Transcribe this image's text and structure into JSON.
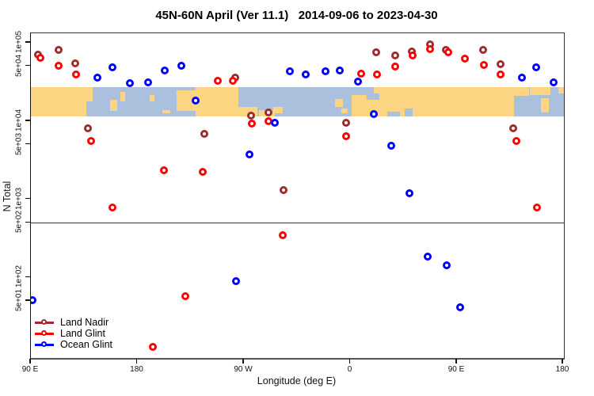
{
  "title": "45N-60N April (Ver 11.1)   2014-09-06 to 2023-04-30",
  "axes": {
    "x": {
      "label": "Longitude (deg E)",
      "ticks": [
        {
          "value": 90,
          "label": "90 E"
        },
        {
          "value": 180,
          "label": "180"
        },
        {
          "value": 270,
          "label": "90 W"
        },
        {
          "value": 360,
          "label": "0"
        },
        {
          "value": 450,
          "label": "90 E"
        },
        {
          "value": 540,
          "label": "180"
        }
      ]
    },
    "y": {
      "label": "N Total",
      "ticks": [
        {
          "value": 100000,
          "label": "1e+05"
        },
        {
          "value": 50000,
          "label": "5e+04"
        },
        {
          "value": 10000,
          "label": "1e+04"
        },
        {
          "value": 5000,
          "label": "5e+03"
        },
        {
          "value": 1000,
          "label": "1e+03"
        },
        {
          "value": 500,
          "label": "5e+02"
        },
        {
          "value": 100,
          "label": "1e+02"
        },
        {
          "value": 50,
          "label": "5e+01"
        }
      ]
    }
  },
  "reference_line": {
    "value": 500
  },
  "map_band": {
    "top_value": 27300,
    "bottom_value": 11500,
    "ocean_color": "#AAC0DD",
    "land_color": "#FBD581",
    "land_patches": [
      [
        0,
        0,
        70,
        37
      ],
      [
        70,
        0,
        8,
        18
      ],
      [
        100,
        16,
        9,
        14
      ],
      [
        113,
        6,
        6,
        12
      ],
      [
        150,
        10,
        6,
        8
      ],
      [
        166,
        29,
        10,
        4
      ],
      [
        184,
        4,
        28,
        26
      ],
      [
        208,
        0,
        54,
        37
      ],
      [
        262,
        25,
        24,
        12
      ],
      [
        288,
        29,
        20,
        8
      ],
      [
        306,
        25,
        12,
        8
      ],
      [
        384,
        15,
        10,
        10
      ],
      [
        392,
        27,
        8,
        6
      ],
      [
        405,
        0,
        224,
        37
      ],
      [
        630,
        0,
        26,
        10
      ],
      [
        644,
        14,
        10,
        18
      ],
      [
        666,
        0,
        8,
        8
      ]
    ],
    "ocean_patches": [
      [
        405,
        0,
        28,
        10
      ],
      [
        424,
        8,
        16,
        8
      ],
      [
        450,
        31,
        16,
        6
      ],
      [
        472,
        27,
        10,
        10
      ],
      [
        610,
        11,
        19,
        26
      ]
    ]
  },
  "legend": [
    {
      "name": "Land Nadir",
      "color": "#9E2C2C"
    },
    {
      "name": "Land Glint",
      "color": "#FF0000"
    },
    {
      "name": "Ocean Glint",
      "color": "#0000FF"
    }
  ],
  "chart_data": {
    "type": "scatter",
    "xlabel": "Longitude (deg E)",
    "ylabel": "N Total",
    "xlim": [
      90,
      540.3
    ],
    "ylim": [
      9.4,
      132000
    ],
    "ylog": true,
    "series": [
      {
        "name": "Land Nadir",
        "color": "#9E2C2C",
        "points": [
          [
            96,
            70000
          ],
          [
            113.4,
            81000
          ],
          [
            127.4,
            55000
          ],
          [
            262.9,
            36000
          ],
          [
            381.7,
            76000
          ],
          [
            397.8,
            69000
          ],
          [
            411.8,
            77000
          ],
          [
            427.1,
            95000
          ],
          [
            440.5,
            81000
          ],
          [
            471.9,
            81000
          ],
          [
            486.6,
            53000
          ],
          [
            138.1,
            8000
          ],
          [
            236.2,
            6800
          ],
          [
            276.3,
            11700
          ],
          [
            291.0,
            12800
          ],
          [
            356.4,
            9500
          ],
          [
            303.7,
            1300
          ],
          [
            497.3,
            8000
          ]
        ]
      },
      {
        "name": "Land Glint",
        "color": "#FF0000",
        "points": [
          [
            98,
            64000
          ],
          [
            113.4,
            51000
          ],
          [
            128.1,
            39000
          ],
          [
            248.2,
            33000
          ],
          [
            260.9,
            33000
          ],
          [
            369.1,
            40000
          ],
          [
            382.4,
            39000
          ],
          [
            397.8,
            50000
          ],
          [
            412.5,
            69000
          ],
          [
            427.1,
            83000
          ],
          [
            442.5,
            76000
          ],
          [
            456.5,
            63000
          ],
          [
            472.5,
            52000
          ],
          [
            486.6,
            39000
          ],
          [
            140.7,
            5600
          ],
          [
            202.2,
            2350
          ],
          [
            235.5,
            2250
          ],
          [
            158.8,
            790
          ],
          [
            276.9,
            9300
          ],
          [
            291.0,
            9900
          ],
          [
            356.4,
            6400
          ],
          [
            500.0,
            5600
          ],
          [
            517.3,
            790
          ],
          [
            303.0,
            350
          ],
          [
            220.2,
            58
          ],
          [
            192.8,
            13
          ]
        ]
      },
      {
        "name": "Ocean Glint",
        "color": "#0000FF",
        "points": [
          [
            146.1,
            36000
          ],
          [
            158.8,
            49000
          ],
          [
            173.5,
            30500
          ],
          [
            188.8,
            31000
          ],
          [
            202.8,
            44000
          ],
          [
            216.8,
            51000
          ],
          [
            228.9,
            18300
          ],
          [
            309.0,
            43000
          ],
          [
            322.3,
            39000
          ],
          [
            339.0,
            43000
          ],
          [
            351.1,
            44000
          ],
          [
            366.4,
            32000
          ],
          [
            379.7,
            12300
          ],
          [
            504.6,
            36000
          ],
          [
            516.6,
            49000
          ],
          [
            531.3,
            31000
          ],
          [
            296.3,
            9500
          ],
          [
            274.9,
            3750
          ],
          [
            394.4,
            4800
          ],
          [
            409.8,
            1200
          ],
          [
            425.1,
            185
          ],
          [
            441.2,
            143
          ],
          [
            452.6,
            42
          ],
          [
            263.6,
            90
          ],
          [
            91.3,
            51
          ]
        ]
      }
    ]
  }
}
